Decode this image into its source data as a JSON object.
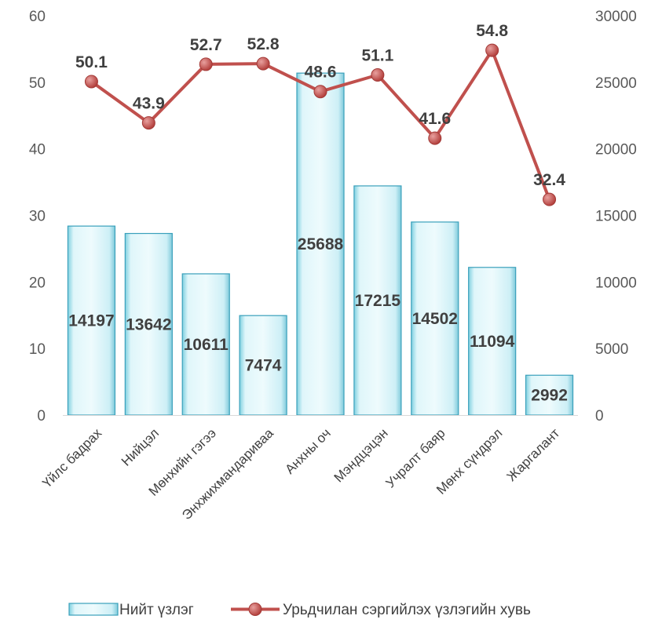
{
  "chart_data": {
    "type": "bar",
    "categories": [
      "Үйлс бадрах",
      "Нийцэл",
      "Мөнхийн гэгээ",
      "Энхжихмандариваа",
      "Анхны оч",
      "Мэндцэцэн",
      "Учралт баяр",
      "Мөнх сүндрэл",
      "Жаргалант"
    ],
    "series": [
      {
        "name": "Нийт үзлэг",
        "type": "bar",
        "axis": "right",
        "values": [
          14197,
          13642,
          10611,
          7474,
          25688,
          17215,
          14502,
          11094,
          2992
        ],
        "labels": [
          "14197",
          "13642",
          "10611",
          "7474",
          "25688",
          "17215",
          "14502",
          "11094",
          "2992"
        ],
        "color": "#c6eef5"
      },
      {
        "name": "Урьдчилан сэргийлэх үзлэгийн хувь",
        "type": "line",
        "axis": "left",
        "values": [
          50.1,
          43.9,
          52.7,
          52.8,
          48.6,
          51.1,
          41.6,
          54.8,
          32.4
        ],
        "labels": [
          "50.1",
          "43.9",
          "52.7",
          "52.8",
          "48.6",
          "51.1",
          "41.6",
          "54.8",
          "32.4"
        ],
        "color": "#c0504d"
      }
    ],
    "left_axis": {
      "ylim": [
        0,
        60
      ],
      "ticks": [
        "0",
        "10",
        "20",
        "30",
        "40",
        "50",
        "60"
      ]
    },
    "right_axis": {
      "ylim": [
        0,
        30000
      ],
      "ticks": [
        "0",
        "5000",
        "10000",
        "15000",
        "20000",
        "25000",
        "30000"
      ]
    },
    "grid": false,
    "legend": "bottom"
  }
}
